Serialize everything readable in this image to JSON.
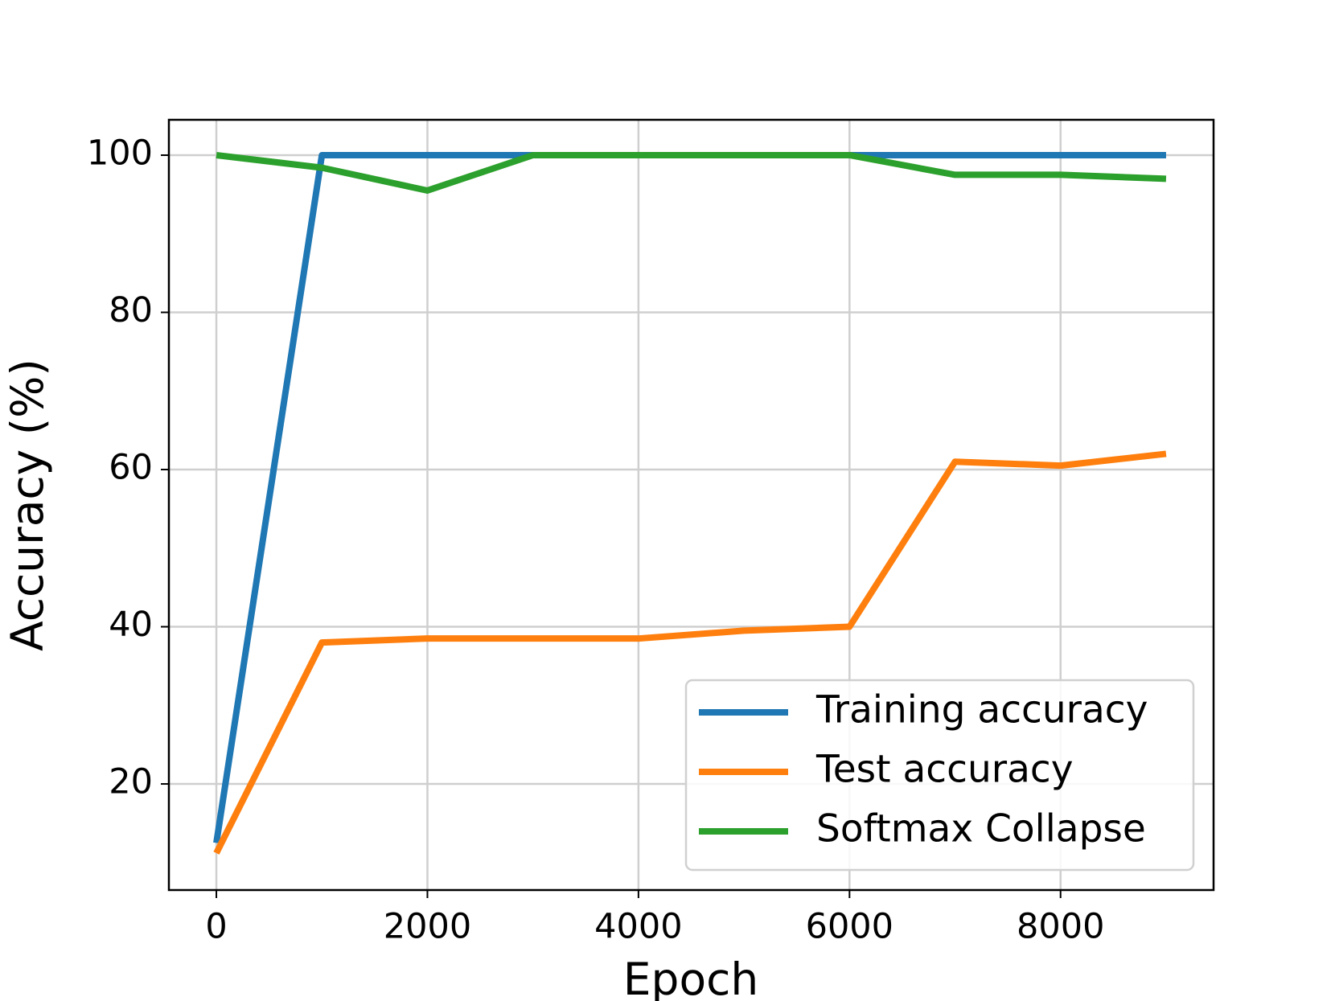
{
  "chart_data": {
    "type": "line",
    "x_label": "Epoch",
    "y_label": "Accuracy (%)",
    "x": [
      0,
      1000,
      2000,
      3000,
      4000,
      5000,
      6000,
      7000,
      8000,
      9000
    ],
    "series": [
      {
        "name": "Training accuracy",
        "color": "#1f77b4",
        "values": [
          12.5,
          100,
          100,
          100,
          100,
          100,
          100,
          100,
          100,
          100
        ]
      },
      {
        "name": "Test accuracy",
        "color": "#ff7f0e",
        "values": [
          11.2,
          38,
          38.5,
          38.5,
          38.5,
          39.5,
          40,
          61,
          60.5,
          62
        ]
      },
      {
        "name": "Softmax Collapse",
        "color": "#2ca02c",
        "values": [
          100,
          98.4,
          95.5,
          100,
          100,
          100,
          100,
          97.5,
          97.5,
          97
        ]
      }
    ],
    "xlim": [
      -450,
      9450
    ],
    "xticks": [
      0,
      2000,
      4000,
      6000,
      8000
    ],
    "ylim": [
      6.5,
      104.5
    ],
    "yticks": [
      20,
      40,
      60,
      80,
      100
    ],
    "grid": true,
    "legend": "lower right"
  }
}
